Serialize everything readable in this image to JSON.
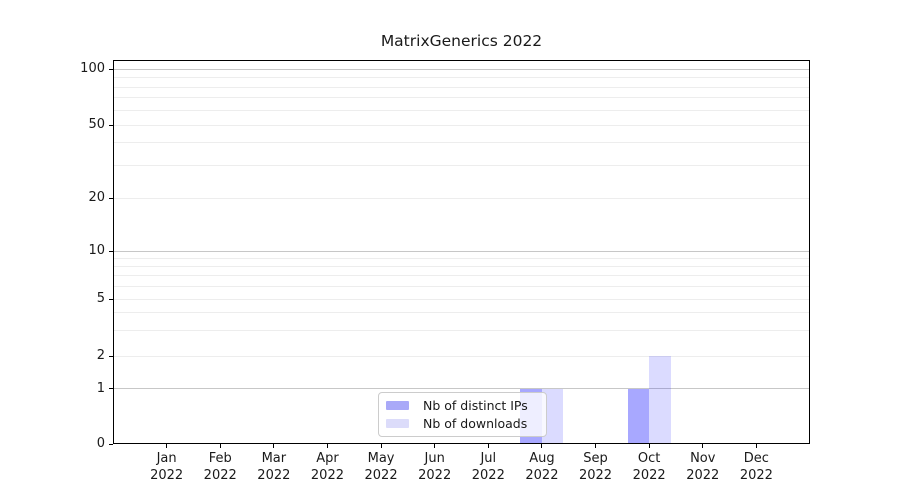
{
  "chart_data": {
    "type": "bar",
    "title": "MatrixGenerics 2022",
    "categories": [
      "Jan 2022",
      "Feb 2022",
      "Mar 2022",
      "Apr 2022",
      "May 2022",
      "Jun 2022",
      "Jul 2022",
      "Aug 2022",
      "Sep 2022",
      "Oct 2022",
      "Nov 2022",
      "Dec 2022"
    ],
    "series": [
      {
        "name": "Nb of distinct IPs",
        "color_hex": "#a9a9f8",
        "color_rgba": "rgba(0,0,255,0.34)",
        "values": [
          0,
          0,
          0,
          0,
          0,
          0,
          0,
          1,
          0,
          1,
          0,
          0
        ]
      },
      {
        "name": "Nb of downloads",
        "color_hex": "#dcdcfa",
        "color_rgba": "rgba(0,0,255,0.14)",
        "values": [
          0,
          0,
          0,
          0,
          0,
          0,
          0,
          1,
          0,
          2,
          0,
          0
        ]
      }
    ],
    "xlabel": "",
    "ylabel": "",
    "yscale": "symlog",
    "ylim": [
      0,
      110
    ],
    "ytick_values": [
      0,
      1,
      2,
      5,
      10,
      20,
      50,
      100
    ],
    "ytick_labels": [
      "0",
      "1",
      "2",
      "5",
      "10",
      "20",
      "50",
      "100"
    ],
    "grid": "horizontal",
    "legend_position": "lower center-left"
  },
  "colors": {
    "distinct_ips_bar": "#a9a9f8",
    "downloads_bar": "#dcdcfa",
    "grid_major": "#c7c7c7",
    "grid_minor": "#ededed",
    "axis": "#000000",
    "text": "#1a1a1a",
    "legend_border": "#cccccc"
  }
}
